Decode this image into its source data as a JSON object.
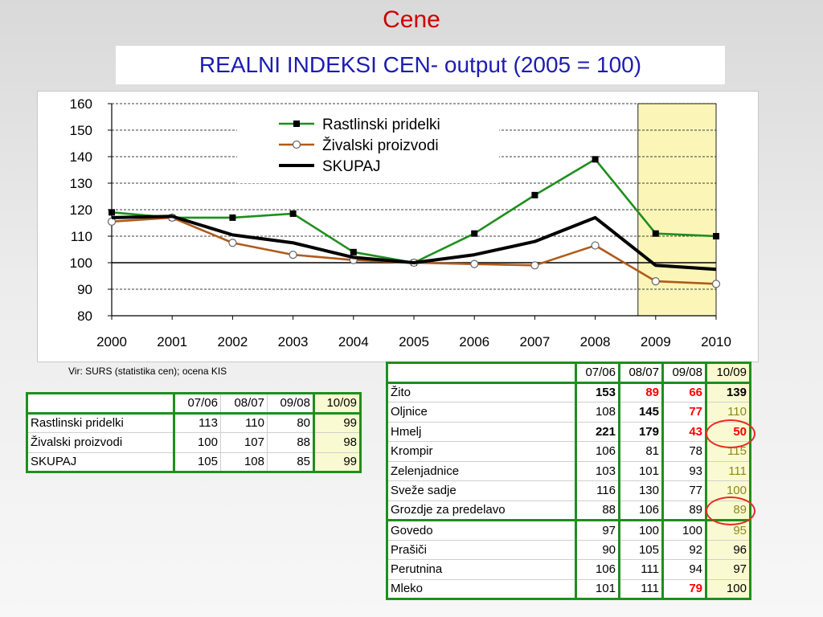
{
  "slide": {
    "title": "Cene",
    "subtitle": "REALNI INDEKSI CEN- output (2005 = 100)",
    "source_note": "Vir: SURS (statistika cen); ocena KIS"
  },
  "chart_data": {
    "type": "line",
    "title": "",
    "xlabel": "",
    "ylabel": "",
    "x": [
      "2000",
      "2001",
      "2002",
      "2003",
      "2004",
      "2005",
      "2006",
      "2007",
      "2008",
      "2009",
      "2010"
    ],
    "ylim": [
      80,
      160
    ],
    "yticks": [
      "80",
      "90",
      "100",
      "110",
      "120",
      "130",
      "140",
      "150",
      "160"
    ],
    "grid": "horizontal dashed",
    "legend": "top-center",
    "highlight_range": [
      "2009",
      "2010"
    ],
    "highlight_color": "#fbf6b8",
    "reference_line": 100,
    "series": [
      {
        "name": "Rastlinski pridelki",
        "color": "#1e8f1e",
        "marker": "square",
        "values": [
          119,
          117,
          117,
          118.5,
          104,
          100,
          111,
          125.5,
          139,
          111,
          110
        ]
      },
      {
        "name": "Živalski proizvodi",
        "color": "#b05a1a",
        "marker": "circle",
        "values": [
          115.5,
          117,
          107.5,
          103,
          101,
          100,
          99.5,
          99,
          106.5,
          93,
          92
        ]
      },
      {
        "name": "SKUPAJ",
        "color": "#000000",
        "marker": "none",
        "values": [
          117,
          117.5,
          110.5,
          107.5,
          102,
          100,
          103,
          108,
          117,
          99,
          97.5
        ]
      }
    ]
  },
  "small_table": {
    "headers": [
      "",
      "07/06",
      "08/07",
      "09/08",
      "10/09"
    ],
    "rows": [
      [
        "Rastlinski pridelki",
        "113",
        "110",
        "80",
        "99"
      ],
      [
        "Živalski proizvodi",
        "100",
        "107",
        "88",
        "98"
      ],
      [
        "SKUPAJ",
        "105",
        "108",
        "85",
        "99"
      ]
    ]
  },
  "big_table": {
    "headers": [
      "",
      "07/06",
      "08/07",
      "09/08",
      "10/09"
    ],
    "rows": [
      [
        "Žito",
        "153",
        "89",
        "66",
        "139"
      ],
      [
        "Oljnice",
        "108",
        "145",
        "77",
        "110"
      ],
      [
        "Hmelj",
        "221",
        "179",
        "43",
        "50"
      ],
      [
        "Krompir",
        "106",
        "81",
        "78",
        "115"
      ],
      [
        "Zelenjadnice",
        "103",
        "101",
        "93",
        "111"
      ],
      [
        "Sveže sadje",
        "116",
        "130",
        "77",
        "100"
      ],
      [
        "Grozdje za predelavo",
        "88",
        "106",
        "89",
        "89"
      ],
      [
        "Govedo",
        "97",
        "100",
        "100",
        "95"
      ],
      [
        "Prašiči",
        "90",
        "105",
        "92",
        "96"
      ],
      [
        "Perutnina",
        "106",
        "111",
        "94",
        "97"
      ],
      [
        "Mleko",
        "101",
        "111",
        "79",
        "100"
      ]
    ]
  },
  "colors": {
    "title": "#cc0000",
    "subtitle": "#1c1cb4",
    "table_border": "#1e8f1e",
    "highlight_cell": "#fafad2",
    "emphasis_red": "#ff0000",
    "circle_annotation": "#e82a1e"
  }
}
